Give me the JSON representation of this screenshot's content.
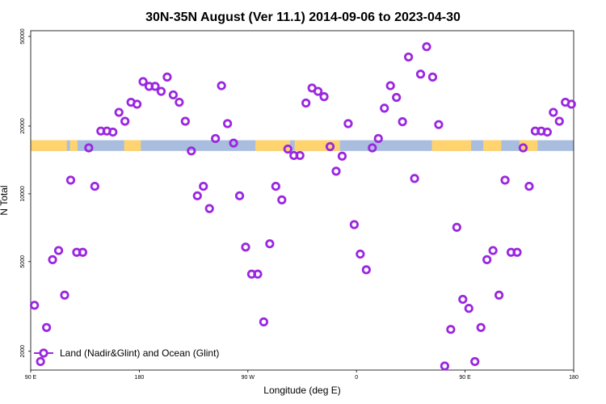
{
  "chart_data": {
    "type": "scatter",
    "title": "30N-35N August (Ver 11.1)   2014-09-06 to 2023-04-30",
    "xlabel": "Longitude (deg E)",
    "ylabel": "N Total",
    "x_ticks": [
      "90 E",
      "180",
      "90 W",
      "0",
      "90 E",
      "180"
    ],
    "y_ticks": [
      "2000",
      "5000",
      "10000",
      "20000",
      "50000"
    ],
    "y_scale": "log",
    "xlim": [
      90,
      450
    ],
    "ylim": [
      1650,
      53000
    ],
    "grid": false,
    "legend_position": "bottom-left",
    "marker_color": "#9b27e0",
    "land_color": "#ffd36e",
    "ocean_color": "#a9bedf",
    "series": [
      {
        "name": "Land (Nadir&Glint) and Ocean (Glint)",
        "x": [
          92.5,
          96.5,
          100.5,
          104.5,
          108.5,
          112.5,
          116.5,
          120.5,
          124.5,
          128.5,
          132.5,
          136.5,
          140.5,
          144.5,
          148.5,
          152.5,
          156.5,
          160.5,
          164.5,
          168.5,
          172.5,
          176.5,
          180.5,
          184.5,
          188.5,
          192.5,
          196.5,
          200.5,
          204.5,
          208.5,
          212.5,
          216.5,
          220.5,
          224.5,
          228.5,
          232.5,
          236.5,
          240.5,
          244.5,
          248.5,
          252.5,
          256.5,
          260.5,
          264.5,
          268.5,
          272.5,
          276.5,
          280.5,
          284.5,
          288.5,
          292.5,
          296.5,
          300.5,
          304.5,
          308.5,
          312.5,
          316.5,
          320.5,
          324.5,
          328.5,
          332.5,
          336.5,
          340.5,
          344.5,
          348.5,
          352.5,
          356.5,
          360.5,
          364.5,
          368.5,
          372.5,
          376.5,
          380.5,
          384.5,
          388.5,
          392.5,
          396.5,
          400.5,
          404.5,
          408.5,
          412.5,
          416.5,
          420.5,
          424.5,
          428.5,
          432.5,
          436.5,
          440.5,
          444.5,
          448.5
        ],
        "y": [
          3200,
          1800,
          2550,
          5100,
          5600,
          3550,
          11500,
          5500,
          5500,
          16000,
          10800,
          19000,
          19000,
          18800,
          23000,
          21000,
          25500,
          25000,
          31500,
          30000,
          30000,
          28500,
          33000,
          27500,
          25500,
          21000,
          15500,
          9800,
          10800,
          8600,
          17600,
          30200,
          20500,
          16800,
          9800,
          5800,
          4400,
          4400,
          2700,
          6000,
          10800,
          9400,
          15800,
          14800,
          14800,
          25300,
          29500,
          28500,
          27000,
          16200,
          12600,
          14700,
          20500,
          7300,
          5400,
          4600,
          16000,
          17600,
          24000,
          30200,
          26800,
          20900,
          40500,
          11700,
          34000,
          45000,
          33000,
          20300,
          1720,
          2500,
          7100,
          3400,
          3100,
          1800,
          2550,
          5100,
          5600,
          3550,
          11500,
          5500,
          5500,
          16000,
          10800,
          19000,
          19000,
          18800,
          23000,
          21000,
          25500,
          25000
        ]
      }
    ],
    "background_band": {
      "y_range": [
        15500,
        17300
      ],
      "land_lon_ranges": [
        [
          90,
          114
        ],
        [
          116,
          121
        ],
        [
          152,
          163
        ],
        [
          239,
          262
        ],
        [
          265,
          295
        ],
        [
          356,
          382
        ],
        [
          390,
          402
        ],
        [
          414,
          426
        ]
      ]
    }
  }
}
